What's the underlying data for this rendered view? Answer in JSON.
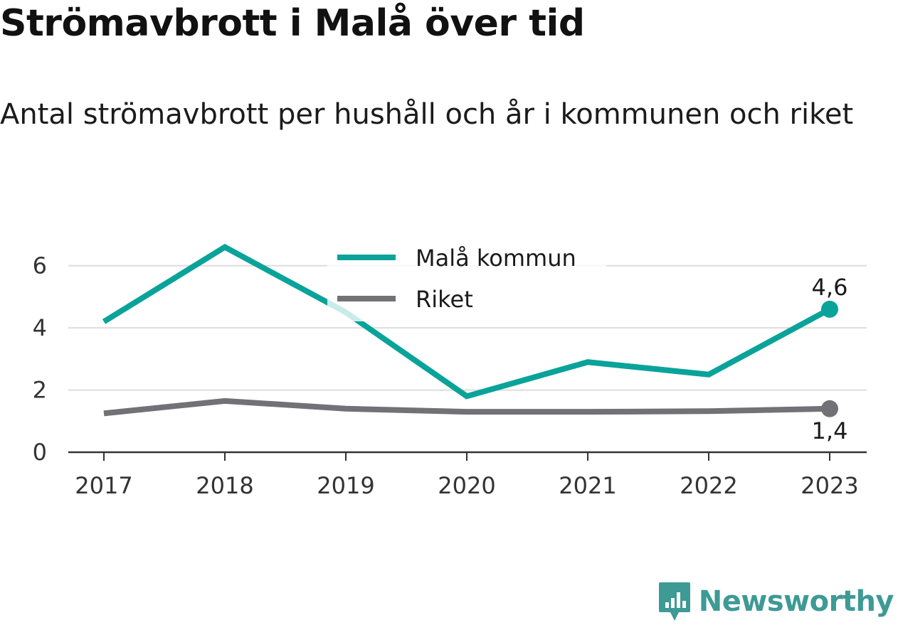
{
  "title": "Strömavbrott i Malå över tid",
  "subtitle": "Antal strömavbrott per hushåll och år i kommunen och riket",
  "brand": {
    "name": "Newsworthy",
    "icon": "newsworthy-logo-icon"
  },
  "colors": {
    "primary": "#0aa39a",
    "secondary": "#727176",
    "grid": "#dddddd",
    "axis": "#333333"
  },
  "chart_data": {
    "type": "line",
    "x": [
      "2017",
      "2018",
      "2019",
      "2020",
      "2021",
      "2022",
      "2023"
    ],
    "ylim": [
      0,
      7
    ],
    "yticks": [
      "0",
      "2",
      "4",
      "6"
    ],
    "grid": true,
    "legend": "top-center",
    "series": [
      {
        "name": "Malå kommun",
        "color": "#0aa39a",
        "values": [
          4.2,
          6.6,
          4.5,
          1.8,
          2.9,
          2.5,
          4.6
        ],
        "end_label": "4,6"
      },
      {
        "name": "Riket",
        "color": "#727176",
        "values": [
          1.25,
          1.65,
          1.4,
          1.3,
          1.3,
          1.32,
          1.4
        ],
        "end_label": "1,4"
      }
    ]
  }
}
